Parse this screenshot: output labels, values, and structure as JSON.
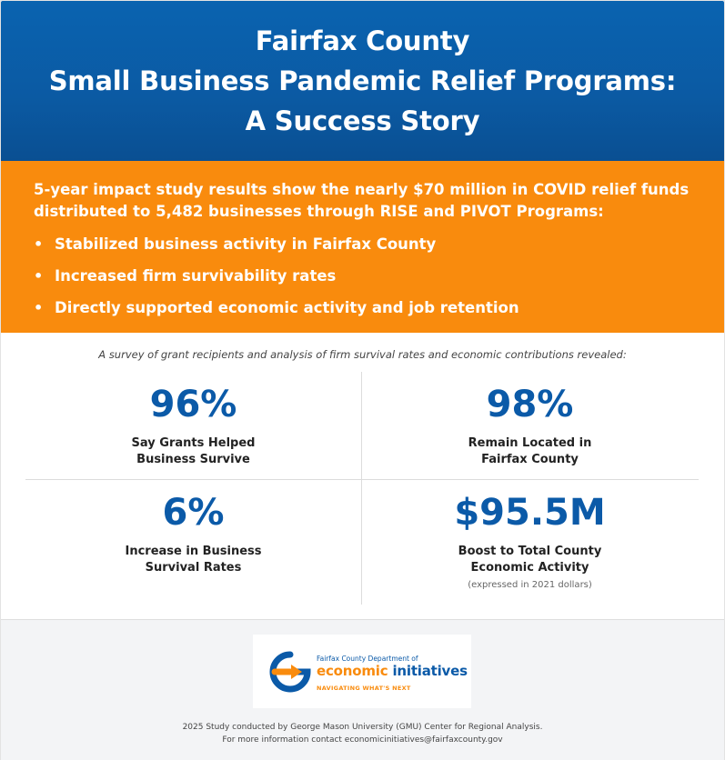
{
  "header": {
    "line1": "Fairfax County",
    "line2": "Small Business Pandemic Relief Programs:",
    "line3": "A Success Story"
  },
  "impact": {
    "intro_line1": "5-year impact study results show the nearly $70 million in COVID relief funds",
    "intro_line2": "distributed to 5,482 businesses through RISE and PIVOT Programs:",
    "bullet_glyph": "•",
    "bullets": [
      "Stabilized business activity in Fairfax County",
      "Increased firm survivability rates",
      "Directly supported economic activity and job retention"
    ]
  },
  "survey": {
    "caption": "A survey of grant recipients and analysis of firm survival rates and economic contributions revealed:",
    "stats": [
      {
        "value": "96%",
        "label_line1": "Say Grants Helped",
        "label_line2": "Business Survive"
      },
      {
        "value": "98%",
        "label_line1": "Remain Located in",
        "label_line2": "Fairfax County"
      },
      {
        "value": "6%",
        "label_line1": "Increase in Business",
        "label_line2": "Survival Rates"
      },
      {
        "value": "$95.5M",
        "label_line1": "Boost to Total County",
        "label_line2": "Economic Activity",
        "note": "(expressed in 2021 dollars)"
      }
    ]
  },
  "logo": {
    "dept": "Fairfax County Department of",
    "name_word1": "economic",
    "name_word2": "initiatives",
    "tagline": "NAVIGATING WHAT'S NEXT"
  },
  "footer": {
    "credit_line1": "2025 Study conducted by George Mason University (GMU) Center for Regional Analysis.",
    "credit_line2": "For more information contact economicinitiatives@fairfaxcounty.gov"
  },
  "colors": {
    "blue": "#0b5aa8",
    "orange": "#f98b0d"
  }
}
